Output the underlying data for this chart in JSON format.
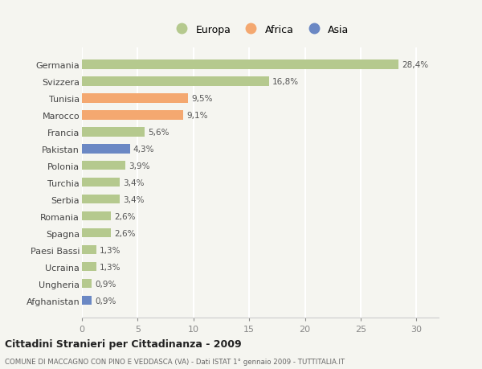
{
  "categories": [
    "Germania",
    "Svizzera",
    "Tunisia",
    "Marocco",
    "Francia",
    "Pakistan",
    "Polonia",
    "Turchia",
    "Serbia",
    "Romania",
    "Spagna",
    "Paesi Bassi",
    "Ucraina",
    "Ungheria",
    "Afghanistan"
  ],
  "values": [
    28.4,
    16.8,
    9.5,
    9.1,
    5.6,
    4.3,
    3.9,
    3.4,
    3.4,
    2.6,
    2.6,
    1.3,
    1.3,
    0.9,
    0.9
  ],
  "labels": [
    "28,4%",
    "16,8%",
    "9,5%",
    "9,1%",
    "5,6%",
    "4,3%",
    "3,9%",
    "3,4%",
    "3,4%",
    "2,6%",
    "2,6%",
    "1,3%",
    "1,3%",
    "0,9%",
    "0,9%"
  ],
  "colors": [
    "#b5c98e",
    "#b5c98e",
    "#f4a870",
    "#f4a870",
    "#b5c98e",
    "#6b88c4",
    "#b5c98e",
    "#b5c98e",
    "#b5c98e",
    "#b5c98e",
    "#b5c98e",
    "#b5c98e",
    "#b5c98e",
    "#b5c98e",
    "#6b88c4"
  ],
  "legend_labels": [
    "Europa",
    "Africa",
    "Asia"
  ],
  "legend_colors": [
    "#b5c98e",
    "#f4a870",
    "#6b88c4"
  ],
  "xlim": [
    0,
    32
  ],
  "xticks": [
    0,
    5,
    10,
    15,
    20,
    25,
    30
  ],
  "title": "Cittadini Stranieri per Cittadinanza - 2009",
  "subtitle": "COMUNE DI MACCAGNO CON PINO E VEDDASCA (VA) - Dati ISTAT 1° gennaio 2009 - TUTTITALIA.IT",
  "background_color": "#f5f5f0",
  "grid_color": "#ffffff",
  "bar_height": 0.55
}
